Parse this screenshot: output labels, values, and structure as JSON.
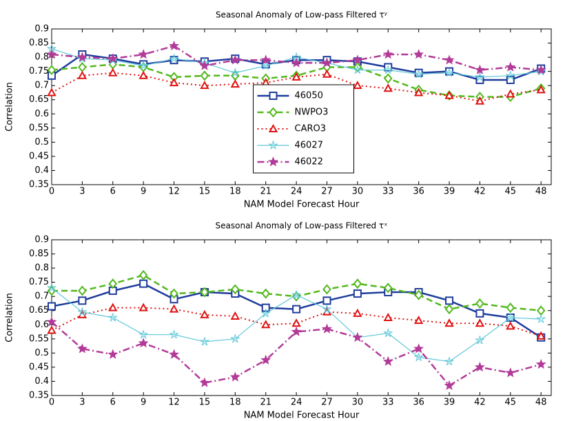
{
  "chart_data": [
    {
      "type": "line",
      "title": "Seasonal Anomaly of Low-pass Filtered τʸ",
      "x_label": "NAM Model Forecast Hour",
      "y_label": "Correlation",
      "x": [
        0,
        3,
        6,
        9,
        12,
        15,
        18,
        21,
        24,
        27,
        30,
        33,
        36,
        39,
        42,
        45,
        48
      ],
      "xlim": [
        0,
        49
      ],
      "xticks": [
        0,
        3,
        6,
        9,
        12,
        15,
        18,
        21,
        24,
        27,
        30,
        33,
        36,
        39,
        42,
        45,
        48
      ],
      "ylim": [
        0.35,
        0.9
      ],
      "yticks": [
        0.35,
        0.4,
        0.45,
        0.5,
        0.55,
        0.6,
        0.65,
        0.7,
        0.75,
        0.8,
        0.85,
        0.9
      ],
      "legend": "center",
      "series": [
        {
          "name": "46050",
          "color": "#1f3c9c",
          "marker": "square",
          "dash": "solid",
          "width": 2.5,
          "values": [
            0.735,
            0.81,
            0.795,
            0.775,
            0.79,
            0.785,
            0.795,
            0.775,
            0.79,
            0.79,
            0.785,
            0.765,
            0.745,
            0.75,
            0.72,
            0.72,
            0.76
          ]
        },
        {
          "name": "NWPO3",
          "color": "#52b81c",
          "marker": "diamond",
          "dash": "dashed",
          "width": 2.5,
          "values": [
            0.755,
            0.765,
            0.775,
            0.765,
            0.73,
            0.735,
            0.735,
            0.725,
            0.735,
            0.765,
            0.765,
            0.725,
            0.685,
            0.665,
            0.66,
            0.66,
            0.69
          ]
        },
        {
          "name": "CARO3",
          "color": "#e01010",
          "marker": "triangle",
          "dash": "dotted",
          "width": 2,
          "values": [
            0.675,
            0.735,
            0.745,
            0.735,
            0.71,
            0.7,
            0.705,
            0.71,
            0.73,
            0.74,
            0.7,
            0.69,
            0.675,
            0.665,
            0.645,
            0.67,
            0.685
          ]
        },
        {
          "name": "46027",
          "color": "#5ec7d8",
          "marker": "star",
          "dash": "solid",
          "width": 1.2,
          "values": [
            0.83,
            0.795,
            0.79,
            0.77,
            0.795,
            0.78,
            0.745,
            0.77,
            0.8,
            0.78,
            0.755,
            0.755,
            0.74,
            0.745,
            0.73,
            0.735,
            0.75
          ]
        },
        {
          "name": "46022",
          "color": "#b23a98",
          "marker": "pentagram",
          "dash": "dashdot",
          "width": 2.5,
          "values": [
            0.81,
            0.8,
            0.795,
            0.81,
            0.84,
            0.77,
            0.79,
            0.79,
            0.78,
            0.78,
            0.79,
            0.81,
            0.81,
            0.79,
            0.755,
            0.765,
            0.755
          ]
        }
      ]
    },
    {
      "type": "line",
      "title": "Seasonal Anomaly of Low-pass Filtered τˣ",
      "x_label": "NAM Model Forecast Hour",
      "y_label": "Correlation",
      "x": [
        0,
        3,
        6,
        9,
        12,
        15,
        18,
        21,
        24,
        27,
        30,
        33,
        36,
        39,
        42,
        45,
        48
      ],
      "xlim": [
        0,
        49
      ],
      "xticks": [
        0,
        3,
        6,
        9,
        12,
        15,
        18,
        21,
        24,
        27,
        30,
        33,
        36,
        39,
        42,
        45,
        48
      ],
      "ylim": [
        0.35,
        0.9
      ],
      "yticks": [
        0.35,
        0.4,
        0.45,
        0.5,
        0.55,
        0.6,
        0.65,
        0.7,
        0.75,
        0.8,
        0.85,
        0.9
      ],
      "series": [
        {
          "color": "#1f3c9c",
          "marker": "square",
          "dash": "solid",
          "width": 2.5,
          "values": [
            0.665,
            0.685,
            0.72,
            0.745,
            0.69,
            0.715,
            0.71,
            0.66,
            0.655,
            0.685,
            0.71,
            0.715,
            0.715,
            0.685,
            0.64,
            0.625,
            0.555
          ]
        },
        {
          "color": "#52b81c",
          "marker": "diamond",
          "dash": "dashed",
          "width": 2.5,
          "values": [
            0.72,
            0.72,
            0.745,
            0.775,
            0.71,
            0.715,
            0.725,
            0.71,
            0.7,
            0.725,
            0.745,
            0.73,
            0.705,
            0.655,
            0.675,
            0.66,
            0.65
          ]
        },
        {
          "color": "#e01010",
          "marker": "triangle",
          "dash": "dotted",
          "width": 2,
          "values": [
            0.58,
            0.635,
            0.66,
            0.66,
            0.655,
            0.635,
            0.63,
            0.6,
            0.605,
            0.645,
            0.64,
            0.625,
            0.615,
            0.605,
            0.605,
            0.595,
            0.56
          ]
        },
        {
          "color": "#5ec7d8",
          "marker": "star",
          "dash": "solid",
          "width": 1.2,
          "values": [
            0.73,
            0.645,
            0.625,
            0.565,
            0.565,
            0.54,
            0.55,
            0.64,
            0.705,
            0.655,
            0.555,
            0.57,
            0.485,
            0.47,
            0.545,
            0.625,
            0.62
          ]
        },
        {
          "color": "#b23a98",
          "marker": "pentagram",
          "dash": "dashdot",
          "width": 2.5,
          "values": [
            0.61,
            0.515,
            0.495,
            0.535,
            0.495,
            0.395,
            0.415,
            0.475,
            0.575,
            0.585,
            0.555,
            0.47,
            0.515,
            0.385,
            0.45,
            0.43,
            0.46
          ]
        }
      ]
    }
  ]
}
